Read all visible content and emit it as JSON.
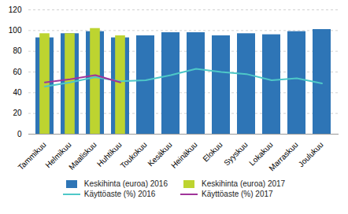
{
  "chart_data": {
    "type": "bar",
    "categories": [
      "Tammikuu",
      "Helmikuu",
      "Maaliskuu",
      "Huhtikuu",
      "Toukokuu",
      "Kesäkuu",
      "Heinäkuu",
      "Elokuu",
      "Syyskuu",
      "Lokakuu",
      "Marraskuu",
      "Joulukuu"
    ],
    "series": [
      {
        "name": "Keskihinta (euroa) 2016",
        "type": "bar",
        "color": "#2e75b6",
        "values": [
          93,
          97,
          99,
          93,
          95,
          98,
          98,
          95,
          97,
          96,
          99,
          101
        ]
      },
      {
        "name": "Keskihinta (euroa) 2017",
        "type": "bar",
        "color": "#bdd430",
        "values": [
          97,
          97,
          102,
          95,
          null,
          null,
          null,
          null,
          null,
          null,
          null,
          null
        ]
      },
      {
        "name": "Käyttöaste (%) 2016",
        "type": "line",
        "color": "#4ec8c8",
        "values": [
          46,
          50,
          55,
          51,
          52,
          57,
          63,
          60,
          58,
          52,
          54,
          49
        ]
      },
      {
        "name": "Käyttöaste (%) 2017",
        "type": "line",
        "color": "#a0349a",
        "values": [
          50,
          53,
          57,
          50,
          null,
          null,
          null,
          null,
          null,
          null,
          null,
          null
        ]
      }
    ],
    "ylim": [
      0,
      120
    ],
    "yticks": [
      0,
      20,
      40,
      60,
      80,
      100,
      120
    ],
    "grid": true,
    "legend": "bottom"
  }
}
